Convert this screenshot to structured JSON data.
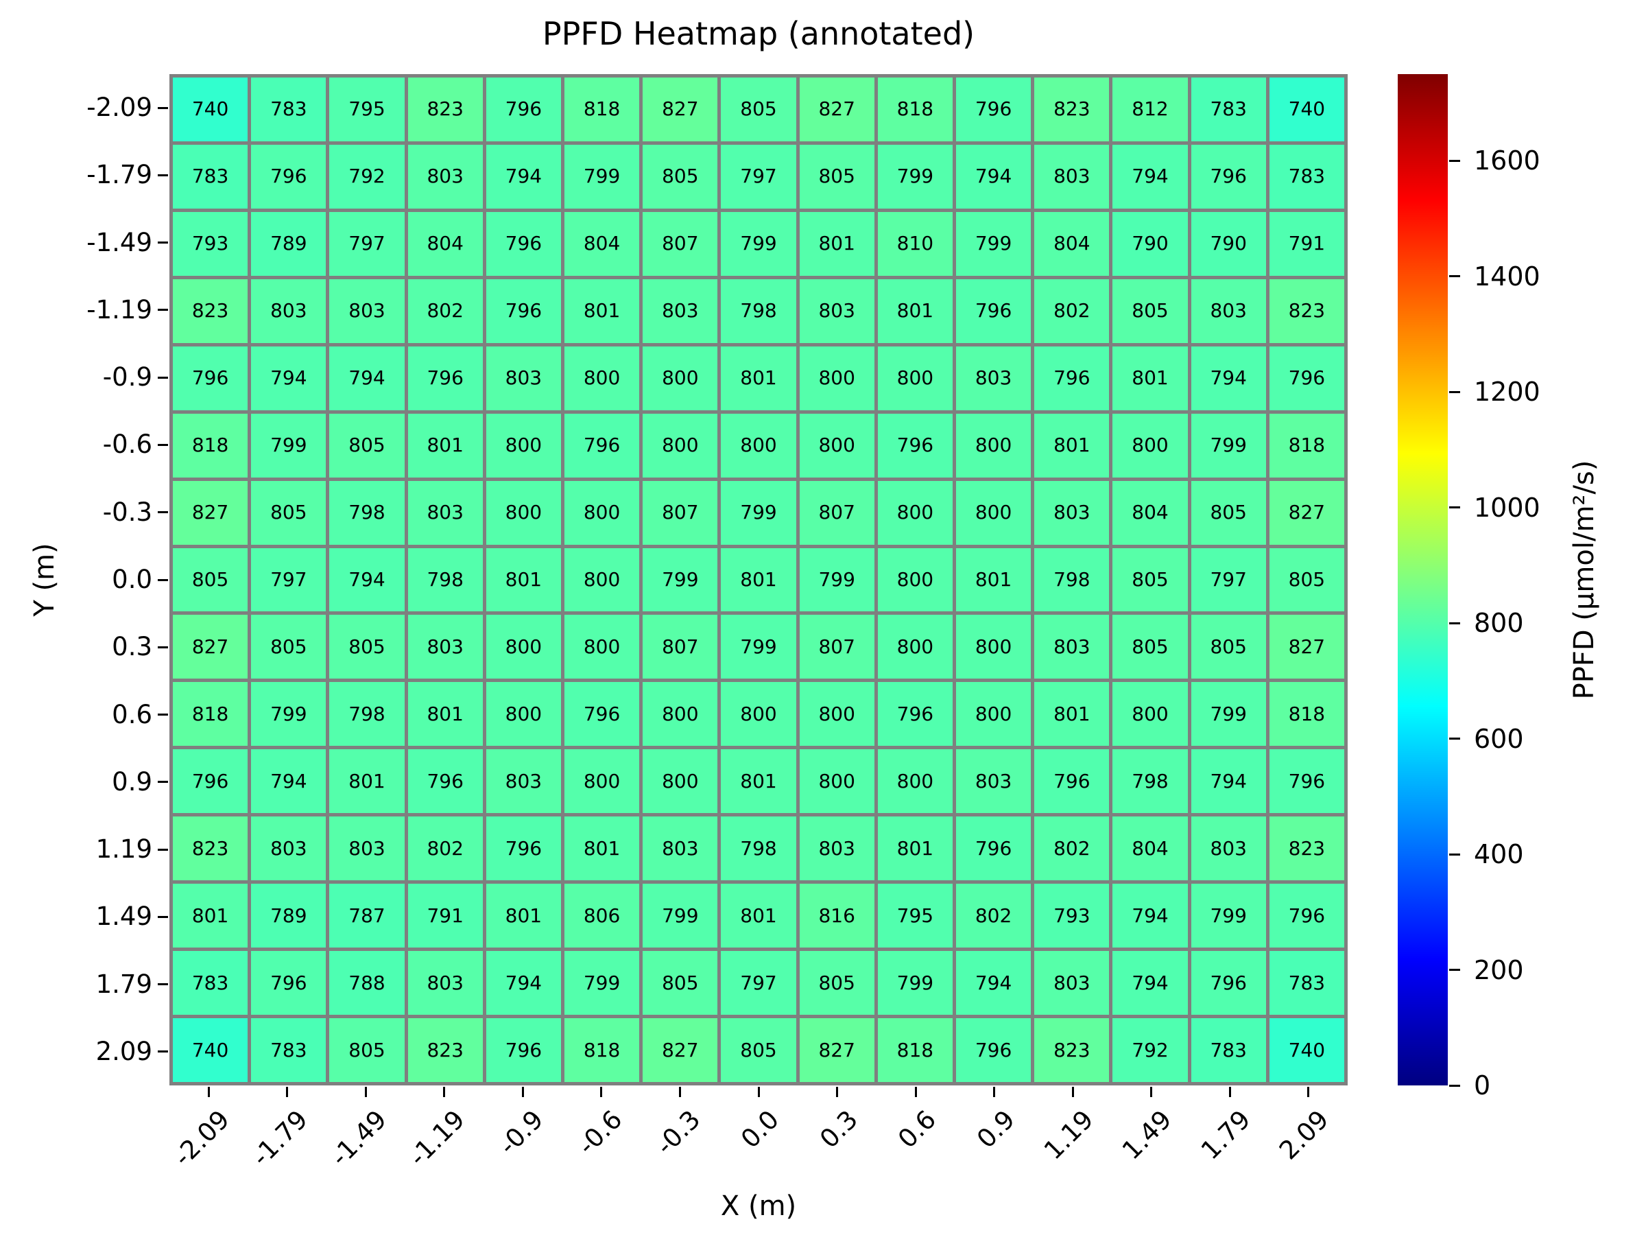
{
  "title": "PPFD Heatmap (annotated)",
  "chart_data": {
    "type": "heatmap",
    "title": "PPFD Heatmap (annotated)",
    "xlabel": "X (m)",
    "ylabel": "Y (m)",
    "x_tick_labels": [
      "-2.09",
      "-1.79",
      "-1.49",
      "-1.19",
      "-0.9",
      "-0.6",
      "-0.3",
      "0.0",
      "0.3",
      "0.6",
      "0.9",
      "1.19",
      "1.49",
      "1.79",
      "2.09"
    ],
    "y_tick_labels": [
      "-2.09",
      "-1.79",
      "-1.49",
      "-1.19",
      "-0.9",
      "-0.6",
      "-0.3",
      "0.0",
      "0.3",
      "0.6",
      "0.9",
      "1.19",
      "1.49",
      "1.79",
      "2.09"
    ],
    "values": [
      [
        740,
        783,
        795,
        823,
        796,
        818,
        827,
        805,
        827,
        818,
        796,
        823,
        812,
        783,
        740
      ],
      [
        783,
        796,
        792,
        803,
        794,
        799,
        805,
        797,
        805,
        799,
        794,
        803,
        794,
        796,
        783
      ],
      [
        793,
        789,
        797,
        804,
        796,
        804,
        807,
        799,
        801,
        810,
        799,
        804,
        790,
        790,
        791
      ],
      [
        823,
        803,
        803,
        802,
        796,
        801,
        803,
        798,
        803,
        801,
        796,
        802,
        805,
        803,
        823
      ],
      [
        796,
        794,
        794,
        796,
        803,
        800,
        800,
        801,
        800,
        800,
        803,
        796,
        801,
        794,
        796
      ],
      [
        818,
        799,
        805,
        801,
        800,
        796,
        800,
        800,
        800,
        796,
        800,
        801,
        800,
        799,
        818
      ],
      [
        827,
        805,
        798,
        803,
        800,
        800,
        807,
        799,
        807,
        800,
        800,
        803,
        804,
        805,
        827
      ],
      [
        805,
        797,
        794,
        798,
        801,
        800,
        799,
        801,
        799,
        800,
        801,
        798,
        805,
        797,
        805
      ],
      [
        827,
        805,
        805,
        803,
        800,
        800,
        807,
        799,
        807,
        800,
        800,
        803,
        805,
        805,
        827
      ],
      [
        818,
        799,
        798,
        801,
        800,
        796,
        800,
        800,
        800,
        796,
        800,
        801,
        800,
        799,
        818
      ],
      [
        796,
        794,
        801,
        796,
        803,
        800,
        800,
        801,
        800,
        800,
        803,
        796,
        798,
        794,
        796
      ],
      [
        823,
        803,
        803,
        802,
        796,
        801,
        803,
        798,
        803,
        801,
        796,
        802,
        804,
        803,
        823
      ],
      [
        801,
        789,
        787,
        791,
        801,
        806,
        799,
        801,
        816,
        795,
        802,
        793,
        794,
        799,
        796
      ],
      [
        783,
        796,
        788,
        803,
        794,
        799,
        805,
        797,
        805,
        799,
        794,
        803,
        794,
        796,
        783
      ],
      [
        740,
        783,
        805,
        823,
        796,
        818,
        827,
        805,
        827,
        818,
        796,
        823,
        792,
        783,
        740
      ]
    ],
    "colormap": "jet",
    "vmin": 0,
    "vmax": 1750,
    "grid_on": true,
    "grid_color": "#7f7f7f",
    "annotation_color": "#000000",
    "background": "#ffffff",
    "colorbar": {
      "label": "PPFD (µmol/m²/s)",
      "ticks": [
        0,
        200,
        400,
        600,
        800,
        1000,
        1200,
        1400,
        1600
      ],
      "position": "right"
    }
  }
}
